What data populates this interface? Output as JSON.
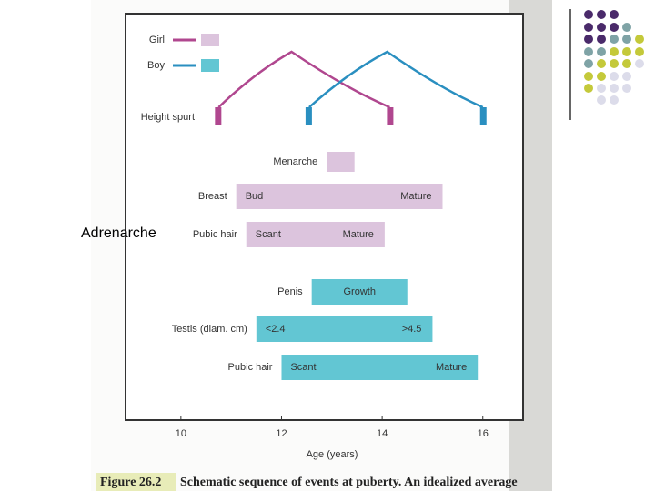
{
  "slide": {
    "overlay_label": "Adrenarche",
    "caption": {
      "figure": "Figure 26.2",
      "text": "Schematic sequence of events at puberty. An idealized average"
    }
  },
  "chart_data": {
    "type": "timeline",
    "xlabel": "Age (years)",
    "xlim": [
      8.9,
      16.8
    ],
    "xticks": [
      10,
      12,
      14,
      16
    ],
    "height_spurt": {
      "label": "Height spurt",
      "series": [
        {
          "name": "Girl",
          "color": "#b0478f",
          "bar_color": "#dcc4dd",
          "start": 10.75,
          "peak": 12.2,
          "end": 14.15
        },
        {
          "name": "Boy",
          "color": "#2a8fc0",
          "bar_color": "#62c6d3",
          "start": 12.55,
          "peak": 14.1,
          "end": 16.0
        }
      ]
    },
    "rows": [
      {
        "label": "Menarche",
        "series": 0,
        "start": 12.9,
        "end": 13.45
      },
      {
        "label": "Breast",
        "series": 0,
        "start": 11.1,
        "end": 15.2,
        "stages": [
          "Bud",
          "Mature"
        ]
      },
      {
        "label": "Pubic hair",
        "series": 0,
        "start": 11.3,
        "end": 14.05,
        "stages": [
          "Scant",
          "Mature"
        ]
      },
      {
        "label": "Penis",
        "series": 1,
        "start": 12.6,
        "end": 14.5,
        "stages": [
          "Growth"
        ]
      },
      {
        "label": "Testis (diam. cm)",
        "series": 1,
        "start": 11.5,
        "end": 15.0,
        "stages": [
          "<2.4",
          ">4.5"
        ]
      },
      {
        "label": "Pubic hair",
        "series": 1,
        "start": 12.0,
        "end": 15.9,
        "stages": [
          "Scant",
          "Mature"
        ]
      }
    ]
  }
}
